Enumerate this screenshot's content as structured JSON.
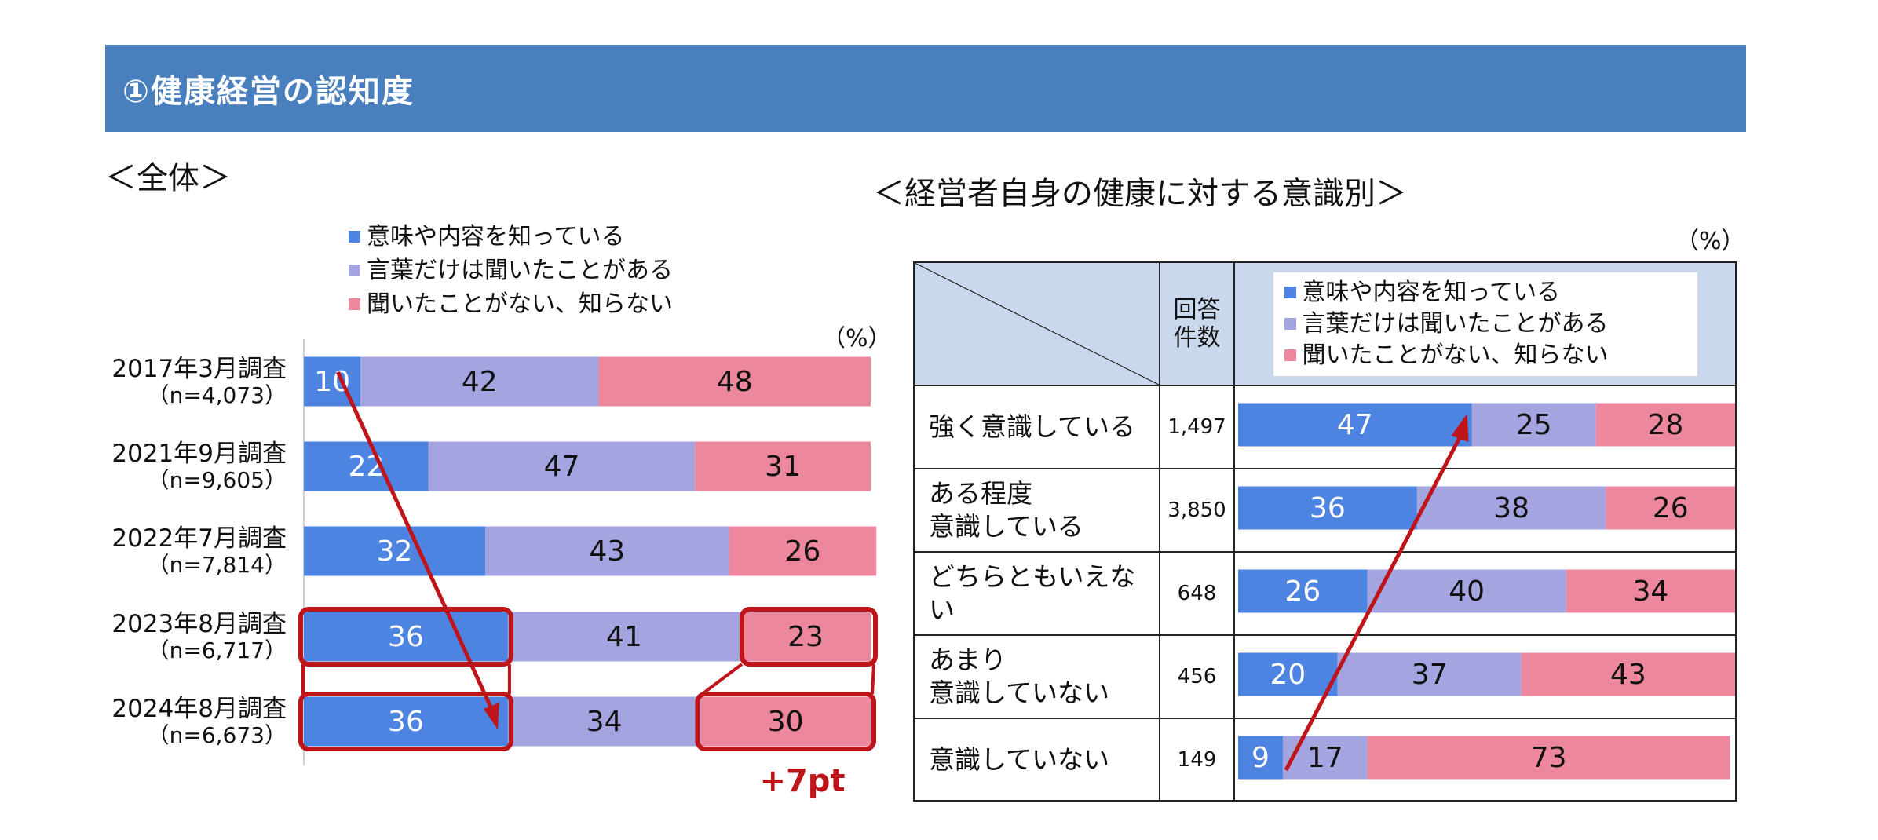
{
  "page_title": "①健康経営の認知度",
  "left_heading": "＜全体＞",
  "right_heading": "＜経営者自身の健康に対する意識別＞",
  "colors": {
    "title_bar": "#4a7fbe",
    "know": "#4d84e2",
    "heard": "#a4a4e0",
    "unknown": "#ec879d",
    "highlight": "#c0141b",
    "header_bg": "#c9d8ec"
  },
  "legend": [
    "意味や内容を知っている",
    "言葉だけは聞いたことがある",
    "聞いたことがない、知らない"
  ],
  "unit": "（%）",
  "table_header": {
    "count_label_line1": "回答",
    "count_label_line2": "件数"
  },
  "annotation": "+7pt",
  "chart_data": [
    {
      "type": "bar",
      "stacked": true,
      "orientation": "horizontal",
      "title": "＜全体＞",
      "unit": "（%）",
      "xlim": [
        0,
        100
      ],
      "categories": [
        {
          "line1": "2017年3月調査",
          "line2": "（n=4,073）"
        },
        {
          "line1": "2021年9月調査",
          "line2": "（n=9,605）"
        },
        {
          "line1": "2022年7月調査",
          "line2": "（n=7,814）"
        },
        {
          "line1": "2023年8月調査",
          "line2": "（n=6,717）"
        },
        {
          "line1": "2024年8月調査",
          "line2": "（n=6,673）"
        }
      ],
      "series": [
        {
          "name": "意味や内容を知っている",
          "values": [
            10,
            22,
            32,
            36,
            36
          ]
        },
        {
          "name": "言葉だけは聞いたことがある",
          "values": [
            42,
            47,
            43,
            41,
            34
          ]
        },
        {
          "name": "聞いたことがない、知らない",
          "values": [
            48,
            31,
            26,
            23,
            30
          ]
        }
      ],
      "annotations": [
        "+7pt"
      ]
    },
    {
      "type": "bar",
      "stacked": true,
      "orientation": "horizontal",
      "title": "＜経営者自身の健康に対する意識別＞",
      "unit": "（%）",
      "xlim": [
        0,
        100
      ],
      "categories": [
        {
          "line1": "強く意識している",
          "line2": "",
          "count": "1,497"
        },
        {
          "line1": "ある程度",
          "line2": "意識している",
          "count": "3,850"
        },
        {
          "line1": "どちらともいえない",
          "line2": "",
          "count": "648"
        },
        {
          "line1": "あまり",
          "line2": "意識していない",
          "count": "456"
        },
        {
          "line1": "意識していない",
          "line2": "",
          "count": "149"
        }
      ],
      "series": [
        {
          "name": "意味や内容を知っている",
          "values": [
            47,
            36,
            26,
            20,
            9
          ]
        },
        {
          "name": "言葉だけは聞いたことがある",
          "values": [
            25,
            38,
            40,
            37,
            17
          ]
        },
        {
          "name": "聞いたことがない、知らない",
          "values": [
            28,
            26,
            34,
            43,
            73
          ]
        }
      ]
    }
  ]
}
